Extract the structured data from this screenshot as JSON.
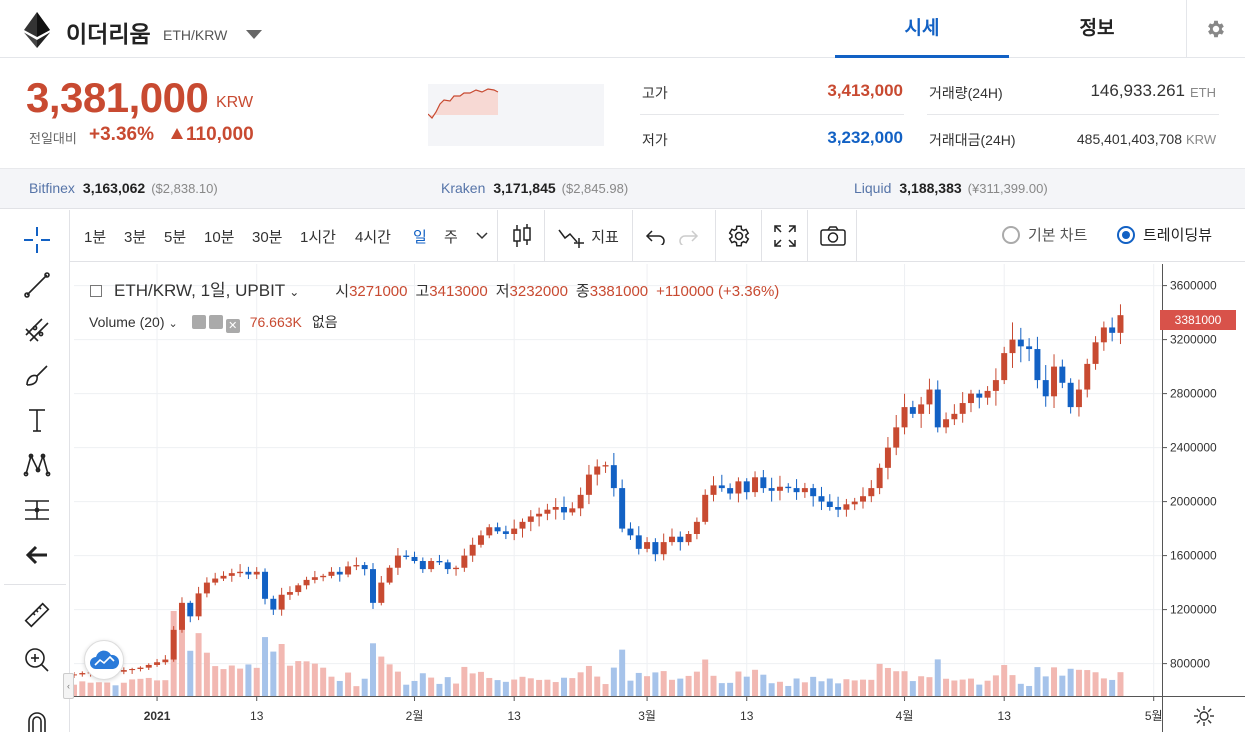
{
  "header": {
    "coin_name": "이더리움",
    "pair": "ETH/KRW",
    "tabs": [
      {
        "label": "시세"
      },
      {
        "label": "정보"
      }
    ]
  },
  "summary": {
    "price": "3,381,000",
    "price_unit": "KRW",
    "change_label": "전일대비",
    "change_pct": "+3.36%",
    "change_amount": "110,000",
    "high_label": "고가",
    "high": "3,413,000",
    "low_label": "저가",
    "low": "3,232,000",
    "volume_label": "거래량(24H)",
    "volume": "146,933.261",
    "volume_unit": "ETH",
    "turnover_label": "거래대금(24H)",
    "turnover": "485,401,403,708",
    "turnover_unit": "KRW"
  },
  "exchanges": [
    {
      "name": "Bitfinex",
      "price": "3,163,062",
      "sub": "($2,838.10)"
    },
    {
      "name": "Kraken",
      "price": "3,171,845",
      "sub": "($2,845.98)"
    },
    {
      "name": "Liquid",
      "price": "3,188,383",
      "sub": "(¥311,399.00)"
    }
  ],
  "toolbar": {
    "timeframes": [
      "1분",
      "3분",
      "5분",
      "10분",
      "30분",
      "1시간",
      "4시간",
      "일",
      "주"
    ],
    "active_timeframe": "일",
    "indicator_label": "지표",
    "basic_chart_label": "기본 차트",
    "tradingview_label": "트레이딩뷰"
  },
  "legend": {
    "symbol": "ETH/KRW, 1일, UPBIT",
    "open_label": "시",
    "open": "3271000",
    "high_label": "고",
    "high": "3413000",
    "low_label": "저",
    "low": "3232000",
    "close_label": "종",
    "close": "3381000",
    "change": "+110000 (+3.36%)",
    "volume_label": "Volume (20)",
    "volume_value": "76.663K",
    "volume_extra": "없음"
  },
  "last_price_tag": "3381000",
  "colors": {
    "up": "#c84a31",
    "down": "#1261c4",
    "accent": "#1261c4"
  },
  "chart_data": {
    "type": "candlestick",
    "title": "ETH/KRW, 1일, UPBIT",
    "y_ticks": [
      "3600000",
      "3200000",
      "2800000",
      "2400000",
      "2000000",
      "1600000",
      "1200000",
      "800000"
    ],
    "ylim": [
      560000,
      3760000
    ],
    "x_ticks": [
      "2021",
      "13",
      "2월",
      "13",
      "3월",
      "13",
      "4월",
      "13",
      "5월"
    ],
    "x_tick_days": [
      0,
      12,
      31,
      43,
      59,
      71,
      90,
      102,
      120
    ],
    "day_range": [
      -10,
      121
    ],
    "closes": [
      720000,
      730000,
      735000,
      738000,
      745000,
      740000,
      752000,
      760000,
      770000,
      790000,
      810000,
      830000,
      1050000,
      1250000,
      1150000,
      1320000,
      1400000,
      1430000,
      1450000,
      1470000,
      1480000,
      1460000,
      1480000,
      1280000,
      1200000,
      1310000,
      1330000,
      1380000,
      1420000,
      1440000,
      1450000,
      1480000,
      1460000,
      1520000,
      1530000,
      1500000,
      1250000,
      1400000,
      1510000,
      1600000,
      1590000,
      1560000,
      1500000,
      1560000,
      1550000,
      1500000,
      1510000,
      1600000,
      1680000,
      1750000,
      1810000,
      1780000,
      1760000,
      1800000,
      1850000,
      1890000,
      1910000,
      1940000,
      1960000,
      1920000,
      1950000,
      2050000,
      2200000,
      2260000,
      2270000,
      2100000,
      1800000,
      1750000,
      1650000,
      1700000,
      1610000,
      1700000,
      1740000,
      1700000,
      1760000,
      1850000,
      2050000,
      2120000,
      2100000,
      2060000,
      2150000,
      2070000,
      2180000,
      2100000,
      2080000,
      2110000,
      2100000,
      2070000,
      2100000,
      2040000,
      2000000,
      1960000,
      1940000,
      1980000,
      2000000,
      2040000,
      2100000,
      2250000,
      2400000,
      2550000,
      2700000,
      2650000,
      2720000,
      2830000,
      2550000,
      2610000,
      2650000,
      2730000,
      2800000,
      2770000,
      2820000,
      2900000,
      3100000,
      3200000,
      3150000,
      3130000,
      2900000,
      2780000,
      3000000,
      2880000,
      2700000,
      2830000,
      3020000,
      3180000,
      3290000,
      3250000,
      3381000
    ],
    "volume_ymax": 1000
  }
}
